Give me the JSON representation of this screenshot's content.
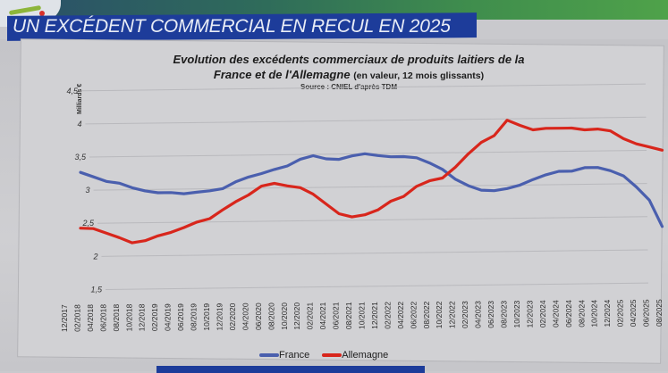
{
  "slide": {
    "heading": "UN EXCÉDENT COMMERCIAL EN RECUL EN 2025"
  },
  "chart": {
    "title_line1": "Evolution des excédents commerciaux de produits laitiers de la",
    "title_line2": "France et de l'Allemagne",
    "title_suffix": "(en valeur, 12 mois glissants)",
    "source": "Source : CNIEL d'après TDM",
    "y_unit": "Milliards €",
    "legend": [
      {
        "label": "France",
        "color": "#4a5fae"
      },
      {
        "label": "Allemagne",
        "color": "#d8261c"
      }
    ]
  },
  "chart_data": {
    "type": "line",
    "title": "Evolution des excédents commerciaux de produits laitiers de la France et de l'Allemagne (en valeur, 12 mois glissants)",
    "subtitle": "Source : CNIEL d'après TDM",
    "xlabel": "",
    "ylabel": "Milliards €",
    "ylim": [
      1.5,
      4.5
    ],
    "yticks": [
      "1,5",
      "2",
      "2,5",
      "3",
      "3,5",
      "4",
      "4,5"
    ],
    "ytick_values": [
      1.5,
      2,
      2.5,
      3,
      3.5,
      4,
      4.5
    ],
    "grid": true,
    "legend_position": "bottom",
    "categories": [
      "12/2017",
      "02/2018",
      "04/2018",
      "06/2018",
      "08/2018",
      "10/2018",
      "12/2018",
      "02/2019",
      "04/2019",
      "06/2019",
      "08/2019",
      "10/2019",
      "12/2019",
      "02/2020",
      "04/2020",
      "06/2020",
      "08/2020",
      "10/2020",
      "12/2020",
      "02/2021",
      "04/2021",
      "06/2021",
      "08/2021",
      "10/2021",
      "12/2021",
      "02/2022",
      "04/2022",
      "06/2022",
      "08/2022",
      "10/2022",
      "12/2022",
      "02/2023",
      "04/2023",
      "06/2023",
      "08/2023",
      "10/2023",
      "12/2023",
      "02/2024",
      "04/2024",
      "06/2024",
      "08/2024",
      "10/2024",
      "12/2024",
      "02/2025",
      "04/2025",
      "06/2025",
      "08/2025"
    ],
    "series": [
      {
        "name": "France",
        "color": "#4a5fae",
        "values": [
          3.27,
          3.2,
          3.13,
          3.1,
          3.03,
          2.98,
          2.95,
          2.95,
          2.93,
          2.95,
          2.97,
          3.0,
          3.1,
          3.17,
          3.22,
          3.28,
          3.33,
          3.43,
          3.48,
          3.43,
          3.42,
          3.47,
          3.5,
          3.47,
          3.45,
          3.45,
          3.43,
          3.35,
          3.25,
          3.1,
          3.0,
          2.93,
          2.92,
          2.95,
          3.0,
          3.08,
          3.15,
          3.2,
          3.2,
          3.25,
          3.25,
          3.2,
          3.12,
          2.95,
          2.75,
          2.35,
          null
        ]
      },
      {
        "name": "Allemagne",
        "color": "#d8261c",
        "values": [
          2.43,
          2.42,
          2.35,
          2.28,
          2.2,
          2.23,
          2.3,
          2.35,
          2.42,
          2.5,
          2.55,
          2.68,
          2.8,
          2.9,
          3.03,
          3.07,
          3.03,
          3.0,
          2.9,
          2.75,
          2.6,
          2.55,
          2.58,
          2.65,
          2.78,
          2.85,
          3.0,
          3.08,
          3.12,
          3.28,
          3.48,
          3.65,
          3.75,
          3.98,
          3.9,
          3.83,
          3.85,
          3.85,
          3.85,
          3.82,
          3.83,
          3.8,
          3.68,
          3.6,
          3.55,
          3.5,
          null
        ]
      }
    ]
  }
}
